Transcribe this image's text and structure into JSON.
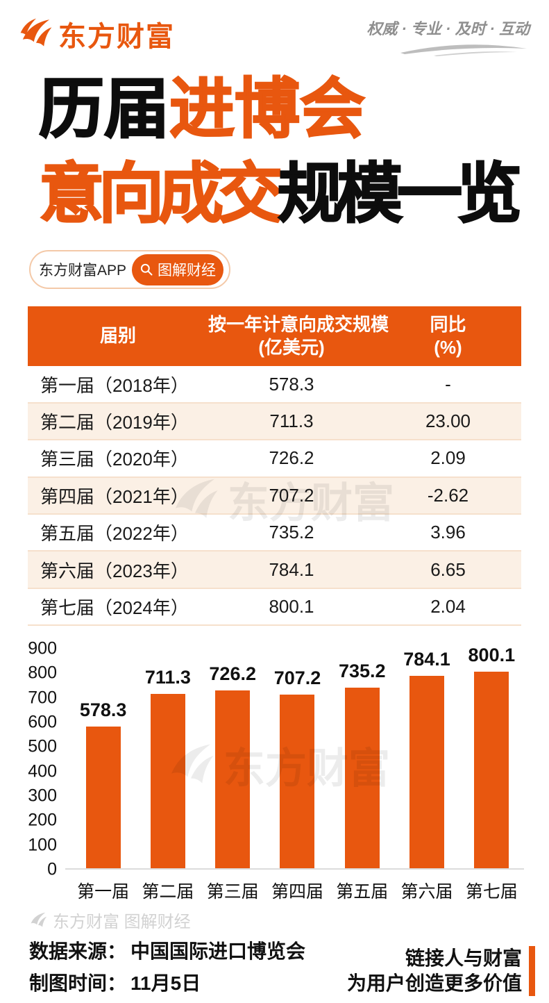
{
  "brand": {
    "logo_text": "东方财富",
    "slogan": "权威 · 专业 · 及时 · 互动",
    "accent_color": "#E8570F"
  },
  "title": {
    "line1_black": "历届",
    "line1_orange": "进博会",
    "line2_orange": "意向成交",
    "line2_black": "规模一览"
  },
  "badge": {
    "app_label": "东方财富APP",
    "tag_label": "图解财经",
    "search_icon": "magnifier"
  },
  "table": {
    "header": {
      "col1": "届别",
      "col2_line1": "按一年计意向成交规模",
      "col2_line2": "(亿美元)",
      "col3_line1": "同比",
      "col3_line2": "(%)"
    },
    "rows": [
      [
        "第一届（2018年）",
        "578.3",
        "-"
      ],
      [
        "第二届（2019年）",
        "711.3",
        "23.00"
      ],
      [
        "第三届（2020年）",
        "726.2",
        "2.09"
      ],
      [
        "第四届（2021年）",
        "707.2",
        "-2.62"
      ],
      [
        "第五届（2022年）",
        "735.2",
        "3.96"
      ],
      [
        "第六届（2023年）",
        "784.1",
        "6.65"
      ],
      [
        "第七届（2024年）",
        "800.1",
        "2.04"
      ]
    ]
  },
  "chart_data": {
    "type": "bar",
    "categories": [
      "第一届",
      "第二届",
      "第三届",
      "第四届",
      "第五届",
      "第六届",
      "第七届"
    ],
    "values": [
      578.3,
      711.3,
      726.2,
      707.2,
      735.2,
      784.1,
      800.1
    ],
    "title": "",
    "xlabel": "",
    "ylabel": "",
    "ylim": [
      0,
      900
    ],
    "ytick_step": 100,
    "bar_color": "#E8570F",
    "grid": false,
    "legend": false
  },
  "watermark": {
    "text": "东方财富"
  },
  "footer": {
    "watermark_text": "东方财富 图解财经",
    "source_label": "数据来源：",
    "source_value": "中国国际进口博览会",
    "time_label": "制图时间：",
    "time_value": "11月5日",
    "slogan_line1": "链接人与财富",
    "slogan_line2": "为用户创造更多价值"
  }
}
